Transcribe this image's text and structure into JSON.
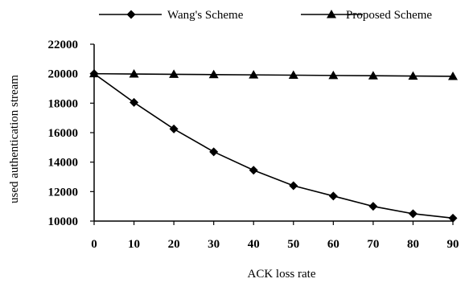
{
  "chart_data": {
    "type": "line",
    "title": "",
    "xlabel": "ACK loss rate",
    "ylabel": "used authentication stream",
    "x": [
      0,
      10,
      20,
      30,
      40,
      50,
      60,
      70,
      80,
      90
    ],
    "xlim": [
      0,
      90
    ],
    "ylim": [
      10000,
      22000
    ],
    "yticks": [
      10000,
      12000,
      14000,
      16000,
      18000,
      20000,
      22000
    ],
    "xticks": [
      0,
      10,
      20,
      30,
      40,
      50,
      60,
      70,
      80,
      90
    ],
    "grid": false,
    "legend_position": "top",
    "series": [
      {
        "name": "Wang's Scheme",
        "marker": "diamond",
        "color": "#000000",
        "values": [
          20000,
          18050,
          16250,
          14700,
          13450,
          12400,
          11700,
          11000,
          10500,
          10200
        ]
      },
      {
        "name": "Proposed Scheme",
        "marker": "triangle",
        "color": "#000000",
        "values": [
          20000,
          19980,
          19960,
          19940,
          19920,
          19900,
          19880,
          19860,
          19840,
          19820
        ]
      }
    ]
  }
}
